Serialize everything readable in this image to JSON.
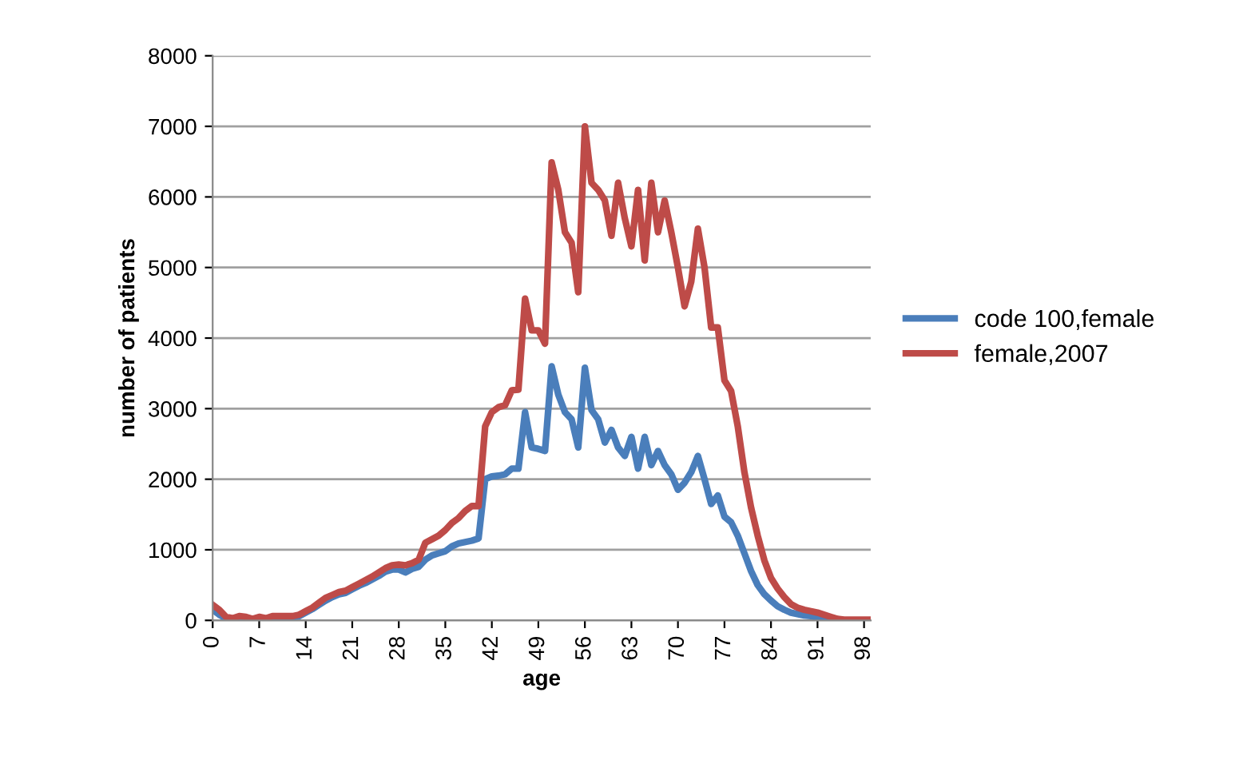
{
  "chart_data": {
    "type": "line",
    "xlabel": "age",
    "ylabel": "number of patients",
    "x": [
      0,
      1,
      2,
      3,
      4,
      5,
      6,
      7,
      8,
      9,
      10,
      11,
      12,
      13,
      14,
      15,
      16,
      17,
      18,
      19,
      20,
      21,
      22,
      23,
      24,
      25,
      26,
      27,
      28,
      29,
      30,
      31,
      32,
      33,
      34,
      35,
      36,
      37,
      38,
      39,
      40,
      41,
      42,
      43,
      44,
      45,
      46,
      47,
      48,
      49,
      50,
      51,
      52,
      53,
      54,
      55,
      56,
      57,
      58,
      59,
      60,
      61,
      62,
      63,
      64,
      65,
      66,
      67,
      68,
      69,
      70,
      71,
      72,
      73,
      74,
      75,
      76,
      77,
      78,
      79,
      80,
      81,
      82,
      83,
      84,
      85,
      86,
      87,
      88,
      89,
      90,
      91,
      92,
      93,
      94,
      95,
      96,
      97,
      98,
      99
    ],
    "series": [
      {
        "name": "code 100,female",
        "color": "#4a7ebb",
        "values": [
          150,
          80,
          30,
          20,
          40,
          30,
          20,
          30,
          20,
          40,
          40,
          40,
          40,
          60,
          110,
          160,
          220,
          280,
          330,
          370,
          390,
          440,
          490,
          530,
          580,
          630,
          690,
          720,
          720,
          680,
          730,
          760,
          860,
          920,
          950,
          980,
          1050,
          1090,
          1110,
          1130,
          1160,
          2000,
          2040,
          2050,
          2070,
          2150,
          2150,
          2950,
          2450,
          2430,
          2400,
          3600,
          3200,
          2950,
          2850,
          2450,
          3580,
          2980,
          2850,
          2520,
          2700,
          2450,
          2330,
          2600,
          2150,
          2600,
          2200,
          2400,
          2200,
          2070,
          1850,
          1950,
          2100,
          2330,
          2000,
          1650,
          1770,
          1470,
          1390,
          1200,
          950,
          700,
          500,
          370,
          280,
          200,
          150,
          110,
          90,
          70,
          60,
          40,
          30,
          20,
          10,
          null,
          null,
          null,
          null,
          null
        ]
      },
      {
        "name": "female,2007",
        "color": "#be4b48",
        "values": [
          220,
          150,
          50,
          30,
          60,
          50,
          20,
          50,
          30,
          60,
          60,
          60,
          60,
          80,
          130,
          180,
          250,
          320,
          360,
          400,
          420,
          470,
          520,
          570,
          620,
          680,
          740,
          780,
          790,
          780,
          810,
          860,
          1100,
          1150,
          1200,
          1280,
          1380,
          1450,
          1550,
          1620,
          1620,
          2750,
          2950,
          3020,
          3050,
          3260,
          3270,
          4560,
          4110,
          4110,
          3920,
          6490,
          6100,
          5500,
          5350,
          4650,
          7000,
          6200,
          6100,
          5950,
          5450,
          6200,
          5700,
          5300,
          6100,
          5100,
          6200,
          5500,
          5950,
          5500,
          5000,
          4450,
          4800,
          5550,
          5000,
          4150,
          4150,
          3400,
          3250,
          2750,
          2100,
          1600,
          1200,
          850,
          600,
          450,
          330,
          230,
          180,
          150,
          130,
          110,
          80,
          50,
          20,
          10,
          10,
          10,
          10,
          10
        ]
      }
    ],
    "xlim": [
      0,
      99
    ],
    "xticks": [
      0,
      7,
      14,
      21,
      28,
      35,
      42,
      49,
      56,
      63,
      70,
      77,
      84,
      91,
      98
    ],
    "ylim": [
      0,
      8000
    ],
    "yticks": [
      0,
      1000,
      2000,
      3000,
      4000,
      5000,
      6000,
      7000,
      8000
    ],
    "grid": "y",
    "legend": "right",
    "marker": "none",
    "line_style": "solid"
  }
}
